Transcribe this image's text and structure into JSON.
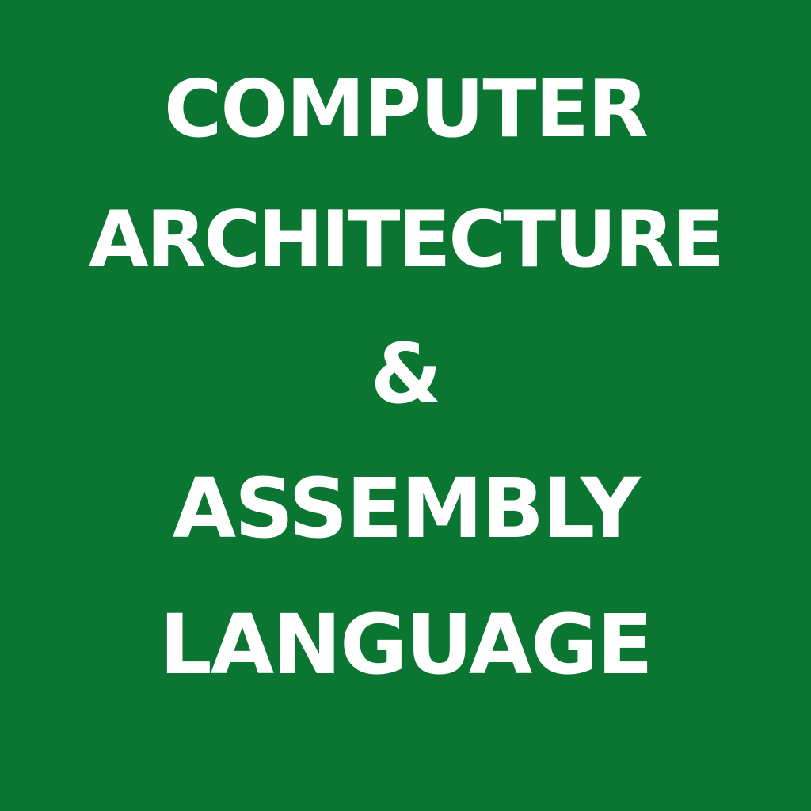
{
  "colors": {
    "background": "#0b7632",
    "text": "#ffffff"
  },
  "title": {
    "line1": "COMPUTER",
    "line2": "ARCHITECTURE",
    "line3": "&",
    "line4": "ASSEMBLY",
    "line5": "LANGUAGE"
  }
}
